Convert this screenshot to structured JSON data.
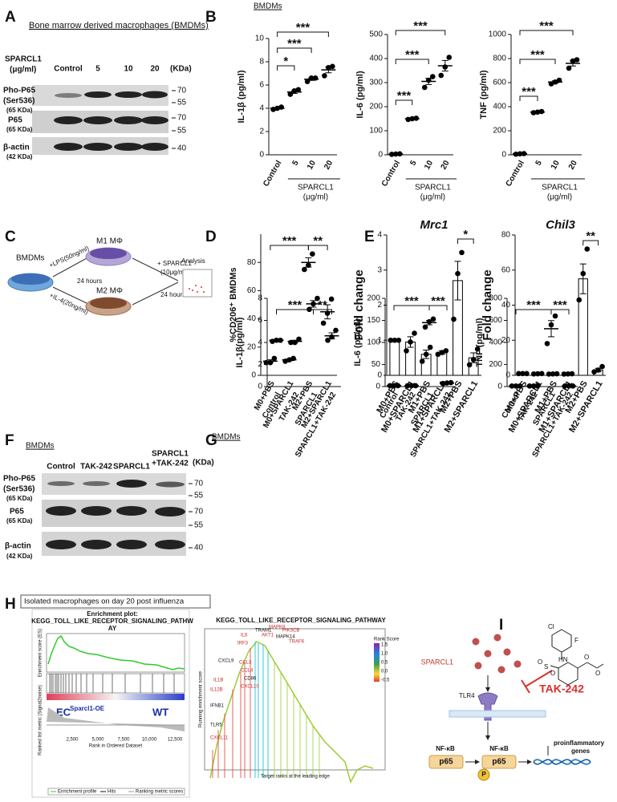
{
  "panel_labels": [
    "A",
    "B",
    "C",
    "D",
    "E",
    "F",
    "G",
    "H",
    "I"
  ],
  "blot_a": {
    "title": "Bone marrow derived macrophages (BMDMs)",
    "treatment": [
      "SPARCL1",
      "(μg/ml)"
    ],
    "lanes": [
      "Control",
      "5",
      "10",
      "20"
    ],
    "unit": "(KDa)",
    "rows": [
      {
        "name": "Pho-P65",
        "sub": "(Ser536)",
        "kda": "(65 KDa)"
      },
      {
        "name": "P65",
        "kda": "(65 KDa)"
      },
      {
        "name": "β-actin",
        "kda": "(42 KDa)"
      }
    ],
    "markers": [
      "70",
      "55",
      "70",
      "55",
      "40"
    ]
  },
  "header_b": "BMDMs",
  "schematic_c": {
    "start": "BMDMs",
    "lps": "+LPS(50ng/ml)",
    "il4": "+IL-4(20ng/ml)",
    "m1": "M1 MΦ",
    "m2": "M2 MΦ",
    "time1": "24 hours",
    "treat": [
      "+ SPARCL1",
      "(10μg/ml)"
    ],
    "time2": "24 hours",
    "analysis": "Analysis"
  },
  "blot_f": {
    "title": "BMDMs",
    "lanes": [
      "Control",
      "TAK-242",
      "SPARCL1"
    ],
    "lane4": [
      "SPARCL1",
      "+TAK-242"
    ],
    "unit": "(KDa)",
    "rows": [
      {
        "name": "Pho-P65",
        "sub": "(Ser536)",
        "kda": "(65 KDa)"
      },
      {
        "name": "P65",
        "kda": "(65 KDa)"
      },
      {
        "name": "β-actin",
        "kda": "(42 KDa)"
      }
    ],
    "markers": [
      "70",
      "55",
      "70",
      "55",
      "40"
    ]
  },
  "header_g": "BMDMs",
  "gsea_h": {
    "title": "Isolated macrophages on day 20 post influenza",
    "plot_title": [
      "Enrichment plot:",
      "KEGG_TOLL_LIKE_RECEPTOR_SIGNALING_PATHW",
      "AY"
    ],
    "es_label": "Enrichment score (ES)",
    "metric_label": "Ranked list metric (Signal2noise)",
    "x_label": "Rank in Ordered Dataset",
    "group1": "EC",
    "group1_sub": "Sparcl1-OE",
    "group2": "WT",
    "x_ticks": [
      "2,500",
      "5,000",
      "7,500",
      "10,000",
      "12,500"
    ],
    "legend": [
      "Enrichment profile",
      "Hits",
      "Ranking metric scores"
    ],
    "right_title": "KEGG_TOLL_LIKE_RECEPTOR_SIGNALING_PATHWAY",
    "right_y": "Running enrichment score",
    "right_x": "Target ranks at the leading edge",
    "colorbar_title": "Rank Score",
    "colorbar_ticks": [
      "1.5",
      "1.0",
      "0.5",
      "0.0",
      "-0.5"
    ],
    "genes": [
      "IL6",
      "TRAM1",
      "MAPK8",
      "PIK3CB",
      "MAPK14",
      "TRAF6",
      "IRF3",
      "CXCL9",
      "IL1B",
      "IL12B",
      "IFNB1",
      "CCL3",
      "CCL4",
      "CD86",
      "CXCL10",
      "CXCL11",
      "TLR5",
      "AKT1"
    ]
  },
  "pathway_i": {
    "ligand": "SPARCL1",
    "inhibitor": "TAK-242",
    "receptor": "TLR4",
    "nfkb": "NF-κB",
    "p65": "p65",
    "phos": "P",
    "genes": [
      "proinflammatory",
      "genes"
    ],
    "atoms": [
      "Cl",
      "F",
      "HN",
      "O",
      "S",
      "O",
      "O",
      "O"
    ]
  },
  "chart_data": [
    {
      "type": "dotplot",
      "y_label": "IL-1β (pg/ml)",
      "categories": [
        "Control",
        "5",
        "10",
        "20"
      ],
      "x_group_label": [
        "SPARCL1",
        "(μg/ml)"
      ],
      "color": "#000000",
      "values": [
        4.0,
        5.4,
        6.5,
        7.3
      ],
      "errors": [
        0.06,
        0.12,
        0.1,
        0.25
      ],
      "points": [
        [
          3.9,
          4.0,
          4.1
        ],
        [
          5.2,
          5.5,
          5.6
        ],
        [
          6.3,
          6.6,
          6.6
        ],
        [
          6.8,
          7.5,
          7.6
        ]
      ],
      "ylim": [
        0,
        10
      ],
      "yticks": [
        0,
        2,
        4,
        6,
        8,
        10
      ],
      "significance": [
        "***",
        "***",
        "*"
      ]
    },
    {
      "type": "dotplot",
      "y_label": "IL-6 (pg/ml)",
      "categories": [
        "Control",
        "5",
        "10",
        "20"
      ],
      "x_group_label": [
        "SPARCL1",
        "(μg/ml)"
      ],
      "color": "#000000",
      "values": [
        3,
        150,
        305,
        370
      ],
      "errors": [
        1,
        2,
        13,
        22
      ],
      "points": [
        [
          2,
          3,
          4
        ],
        [
          147,
          150,
          152
        ],
        [
          280,
          310,
          325
        ],
        [
          330,
          365,
          405
        ]
      ],
      "ylim": [
        0,
        500
      ],
      "yticks": [
        0,
        100,
        200,
        300,
        400,
        500
      ],
      "significance": [
        "***",
        "***",
        "***"
      ]
    },
    {
      "type": "dotplot",
      "y_label": "TNF (pg/ml)",
      "categories": [
        "Control",
        "5",
        "10",
        "20"
      ],
      "x_group_label": [
        "SPARCL1",
        "(μg/ml)"
      ],
      "color": "#000000",
      "values": [
        8,
        355,
        605,
        760
      ],
      "errors": [
        2,
        4,
        10,
        22
      ],
      "points": [
        [
          5,
          8,
          10
        ],
        [
          350,
          355,
          360
        ],
        [
          590,
          605,
          620
        ],
        [
          720,
          780,
          790
        ]
      ],
      "ylim": [
        0,
        1000
      ],
      "yticks": [
        0,
        200,
        400,
        600,
        800,
        1000
      ],
      "significance": [
        "***",
        "***",
        "***"
      ]
    },
    {
      "type": "dotplot",
      "y_label": "%CD206⁺ BMDMs",
      "categories": [
        "M0+PBS",
        "M0+SPARCL1",
        "M2+PBS",
        "M2+SPARCL1"
      ],
      "color": "#000000",
      "values": [
        10,
        11,
        80,
        45
      ],
      "errors": [
        1,
        0.6,
        3.3,
        5
      ],
      "points": [
        [
          9,
          9,
          12
        ],
        [
          10,
          11,
          12
        ],
        [
          75,
          78,
          86
        ],
        [
          37,
          44,
          54
        ]
      ],
      "ylim": [
        0,
        100
      ],
      "yticks": [
        0,
        20,
        40,
        60,
        80
      ],
      "significance": [
        "***",
        "**"
      ]
    },
    {
      "type": "bar",
      "title": "Mrc1",
      "y_label": "Fold change",
      "categories": [
        "M0+PBS",
        "M0+SPARCL1",
        "M1+PBS",
        "M1+SPARCL1",
        "M2+PBS",
        "M2+SPARCL1"
      ],
      "color": "#000000",
      "values": [
        1.0,
        0.95,
        0.6,
        0.65,
        2.7,
        0.5
      ],
      "errors": [
        0.01,
        0.15,
        0.12,
        0.05,
        0.55,
        0.14
      ],
      "points": [
        [
          1.0,
          1.0,
          1.0
        ],
        [
          0.7,
          0.95,
          1.2
        ],
        [
          0.4,
          0.6,
          0.8
        ],
        [
          0.6,
          0.65,
          0.7
        ],
        [
          1.6,
          2.9,
          3.5
        ],
        [
          0.3,
          0.45,
          0.75
        ]
      ],
      "ylim": [
        0,
        4
      ],
      "yticks": [
        0,
        1,
        2,
        3,
        4
      ],
      "significance": [
        "*"
      ]
    },
    {
      "type": "bar",
      "title": "Chil3",
      "y_label": "Fold change",
      "categories": [
        "M0+PBS",
        "M0+SPARCL1",
        "M1+PBS",
        "M1+SPARCL1",
        "M2+PBS",
        "M2+SPARCL1"
      ],
      "color": "#000000",
      "values": [
        1.0,
        0.9,
        0.8,
        0.8,
        55,
        3
      ],
      "errors": [
        0.05,
        0.1,
        0.1,
        0.1,
        8.5,
        1
      ],
      "points": [
        [
          1.0,
          1.0,
          1.0
        ],
        [
          0.8,
          0.9,
          1.0
        ],
        [
          0.7,
          0.8,
          0.9
        ],
        [
          0.7,
          0.8,
          0.9
        ],
        [
          43,
          58,
          72
        ],
        [
          2,
          3,
          5
        ]
      ],
      "ylim": [
        0,
        80
      ],
      "yticks": [
        0,
        20,
        40,
        60,
        80
      ],
      "significance": [
        "**"
      ]
    },
    {
      "type": "dotplot",
      "y_label": "IL-1β(pg/ml)",
      "categories": [
        "Control",
        "TAK-242",
        "SPARCL1",
        "SPARCL1+TAK-242"
      ],
      "color": "#000000",
      "values": [
        4.2,
        4.1,
        7.5,
        4.6
      ],
      "errors": [
        0.03,
        0.1,
        0.3,
        0.27
      ],
      "points": [
        [
          4.1,
          4.2,
          4.2
        ],
        [
          4.0,
          4.0,
          4.3
        ],
        [
          7.0,
          7.5,
          8.0
        ],
        [
          4.2,
          4.5,
          5.1
        ]
      ],
      "ylim": [
        0,
        8
      ],
      "yticks": [
        0,
        2,
        4,
        6,
        8
      ],
      "significance": [
        "***",
        "**"
      ]
    },
    {
      "type": "dotplot",
      "y_label": "IL-6 (pg/ml)",
      "categories": [
        "Control",
        "TAK-242",
        "SPARCL1",
        "SPARCL1+TAK-242"
      ],
      "color": "#000000",
      "values": [
        2,
        2,
        145,
        8
      ],
      "errors": [
        0.2,
        0.2,
        5,
        0.6
      ],
      "points": [
        [
          2,
          2,
          2
        ],
        [
          2,
          2,
          2
        ],
        [
          135,
          147,
          153
        ],
        [
          7,
          8,
          9
        ]
      ],
      "ylim": [
        0,
        200
      ],
      "yticks": [
        0,
        50,
        100,
        150,
        200
      ],
      "significance": [
        "***",
        "***"
      ]
    },
    {
      "type": "dotplot",
      "y_label": "TNF (pg/ml)",
      "categories": [
        "Control",
        "TAK-242",
        "SPARCL1",
        "SPARCL1+TAK-242"
      ],
      "color": "#000000",
      "values": [
        5,
        5,
        525,
        5
      ],
      "errors": [
        0.5,
        0.5,
        73,
        0.5
      ],
      "points": [
        [
          5,
          5,
          5
        ],
        [
          5,
          5,
          5
        ],
        [
          390,
          560,
          640
        ],
        [
          5,
          5,
          5
        ]
      ],
      "ylim": [
        0,
        800
      ],
      "yticks": [
        0,
        200,
        400,
        600,
        800
      ],
      "significance": [
        "***",
        "***"
      ]
    }
  ]
}
